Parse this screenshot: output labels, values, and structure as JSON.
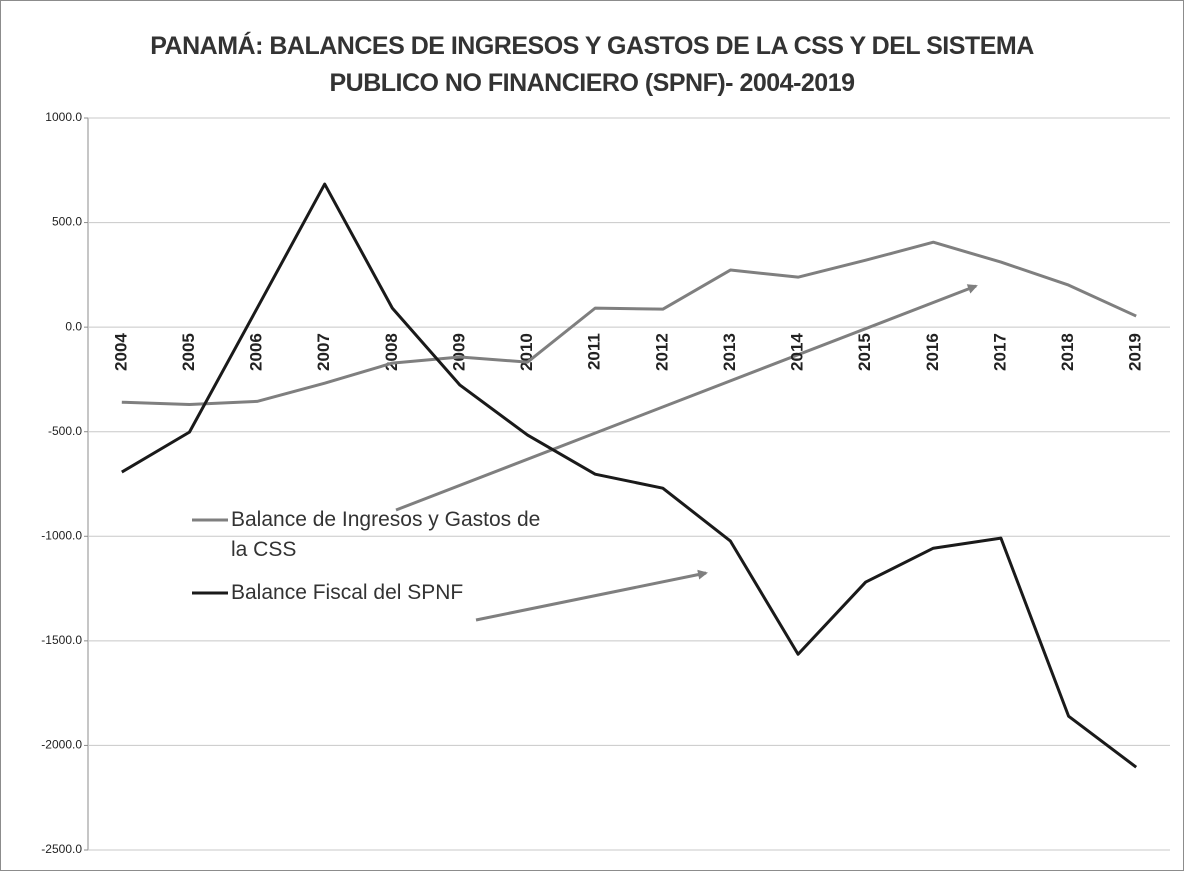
{
  "chart_data": {
    "type": "line",
    "title": "PANAMÁ: BALANCES DE INGRESOS Y GASTOS DE LA CSS Y DEL SISTEMA PUBLICO NO FINANCIERO (SPNF)- 2004-2019",
    "categories": [
      "2004",
      "2005",
      "2006",
      "2007",
      "2008",
      "2009",
      "2010",
      "2011",
      "2012",
      "2013",
      "2014",
      "2015",
      "2016",
      "2017",
      "2018",
      "2019"
    ],
    "series": [
      {
        "name": "Balance de Ingresos y Gastos de la CSS",
        "color": "#7f7f7f",
        "values": [
          -359,
          -370,
          -355,
          -268,
          -172,
          -143,
          -167,
          91,
          86,
          273,
          239,
          320,
          406,
          311,
          201,
          53
        ]
      },
      {
        "name": "Balance Fiscal del SPNF",
        "color": "#1a1a1a",
        "values": [
          -693,
          -502,
          90,
          684,
          91,
          -277,
          -516,
          -703,
          -770,
          -1023,
          -1564,
          -1219,
          -1057,
          -1009,
          -1860,
          -2104
        ]
      }
    ],
    "ylim": [
      -2500,
      1000
    ],
    "yticks": [
      {
        "value": -2500,
        "label": "-2500.0"
      },
      {
        "value": -2000,
        "label": "-2000.0"
      },
      {
        "value": -1500,
        "label": "-1500.0"
      },
      {
        "value": -1000,
        "label": "-1000.0"
      },
      {
        "value": -500,
        "label": "-500.0"
      },
      {
        "value": 0,
        "label": "0.0"
      },
      {
        "value": 500,
        "label": "500.0"
      },
      {
        "value": 1000,
        "label": "1000.0"
      }
    ],
    "grid": true,
    "legend": "left"
  }
}
